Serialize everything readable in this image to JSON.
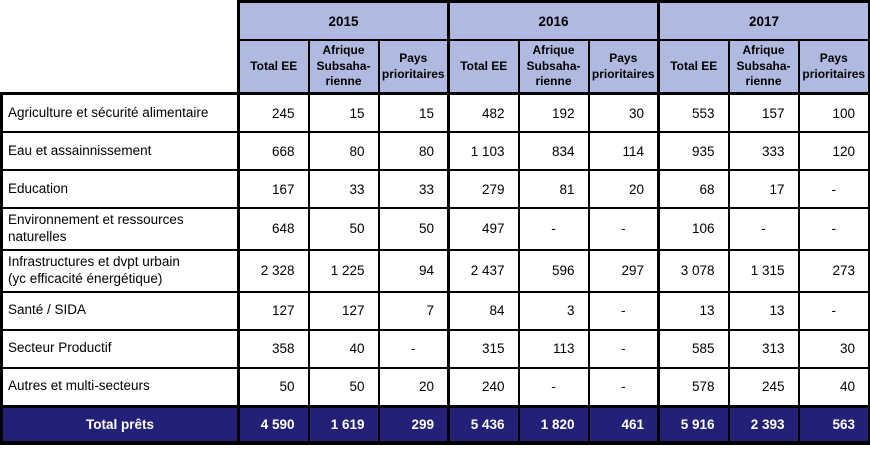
{
  "chart_data": {
    "type": "table",
    "title": "",
    "year_groups": [
      {
        "year": "2015",
        "columns": [
          "Total EE",
          "Afrique Subsaha-rienne",
          "Pays prioritaires"
        ]
      },
      {
        "year": "2016",
        "columns": [
          "Total EE",
          "Afrique Subsaha-rienne",
          "Pays prioritaires"
        ]
      },
      {
        "year": "2017",
        "columns": [
          "Total EE",
          "Afrique Subsaha-rienne",
          "Pays prioritaires"
        ]
      }
    ],
    "rows": [
      {
        "label": "Agriculture et sécurité alimentaire",
        "values": [
          "245",
          "15",
          "15",
          "482",
          "192",
          "30",
          "553",
          "157",
          "100"
        ]
      },
      {
        "label": "Eau et assainnissement",
        "values": [
          "668",
          "80",
          "80",
          "1 103",
          "834",
          "114",
          "935",
          "333",
          "120"
        ]
      },
      {
        "label": "Education",
        "values": [
          "167",
          "33",
          "33",
          "279",
          "81",
          "20",
          "68",
          "17",
          "-"
        ]
      },
      {
        "label": "Environnement et ressources\nnaturelles",
        "values": [
          "648",
          "50",
          "50",
          "497",
          "-",
          "-",
          "106",
          "-",
          "-"
        ]
      },
      {
        "label": "Infrastructures et dvpt urbain\n(yc efficacité énergétique)",
        "values": [
          "2 328",
          "1 225",
          "94",
          "2 437",
          "596",
          "297",
          "3 078",
          "1 315",
          "273"
        ]
      },
      {
        "label": "Santé / SIDA",
        "values": [
          "127",
          "127",
          "7",
          "84",
          "3",
          "-",
          "13",
          "13",
          "-"
        ]
      },
      {
        "label": "Secteur Productif",
        "values": [
          "358",
          "40",
          "-",
          "315",
          "113",
          "-",
          "585",
          "313",
          "30"
        ]
      },
      {
        "label": "Autres et multi-secteurs",
        "values": [
          "50",
          "50",
          "20",
          "240",
          "-",
          "-",
          "578",
          "245",
          "40"
        ]
      }
    ],
    "total_row": {
      "label": "Total prêts",
      "values": [
        "4 590",
        "1 619",
        "299",
        "5 436",
        "1 820",
        "461",
        "5 916",
        "2 393",
        "563"
      ]
    },
    "colors": {
      "header_bg": "#B0BAE1",
      "total_bg": "#232078",
      "total_text": "#FFFFFF",
      "border": "#000000"
    }
  }
}
